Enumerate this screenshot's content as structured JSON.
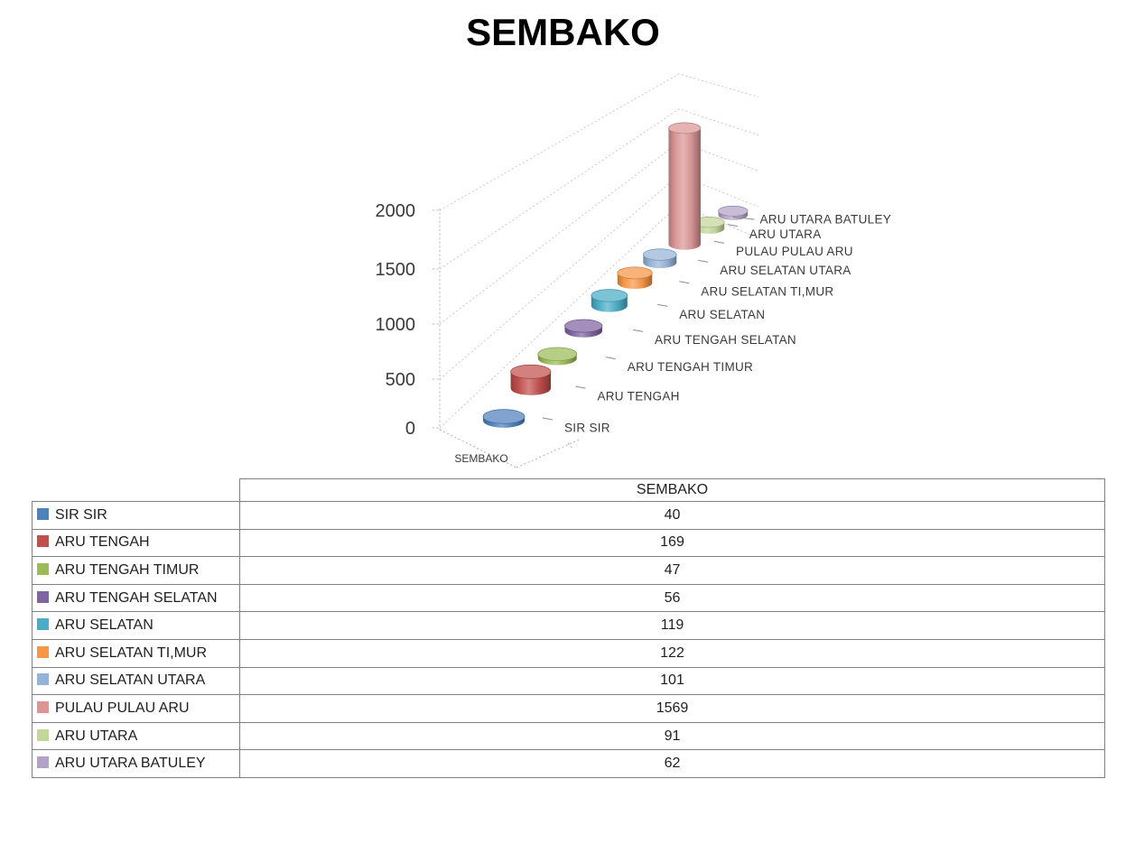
{
  "title": "SEMBAKO",
  "chart_data": {
    "type": "bar",
    "subtype": "3d-cylinder",
    "title": "SEMBAKO",
    "category": "SEMBAKO",
    "xlabel": "SEMBAKO",
    "ylabel": "",
    "ylim": [
      0,
      2000
    ],
    "value_axis_ticks": [
      0,
      500,
      1000,
      1500,
      2000
    ],
    "grid": "dashed",
    "legend_position": "table-left",
    "series": [
      {
        "name": "SIR SIR",
        "value": 40,
        "color": "#4F81BD"
      },
      {
        "name": "ARU TENGAH",
        "value": 169,
        "color": "#C0504D"
      },
      {
        "name": "ARU TENGAH TIMUR",
        "value": 47,
        "color": "#9BBB59"
      },
      {
        "name": "ARU TENGAH SELATAN",
        "value": 56,
        "color": "#8064A2"
      },
      {
        "name": "ARU SELATAN",
        "value": 119,
        "color": "#4BACC6"
      },
      {
        "name": "ARU SELATAN TI,MUR",
        "value": 122,
        "color": "#F79646"
      },
      {
        "name": "ARU SELATAN UTARA",
        "value": 101,
        "color": "#95B3D7"
      },
      {
        "name": "PULAU PULAU ARU",
        "value": 1569,
        "color": "#D99694"
      },
      {
        "name": "ARU UTARA",
        "value": 91,
        "color": "#C3D69B"
      },
      {
        "name": "ARU UTARA BATULEY",
        "value": 62,
        "color": "#B3A2C7"
      }
    ]
  },
  "table": {
    "header": "SEMBAKO",
    "rows": [
      {
        "label": "SIR SIR",
        "value": "40",
        "swatch_color": "#4F81BD"
      },
      {
        "label": "ARU TENGAH",
        "value": "169",
        "swatch_color": "#C0504D"
      },
      {
        "label": "ARU TENGAH TIMUR",
        "value": "47",
        "swatch_color": "#9BBB59"
      },
      {
        "label": "ARU TENGAH SELATAN",
        "value": "56",
        "swatch_color": "#8064A2"
      },
      {
        "label": "ARU SELATAN",
        "value": "119",
        "swatch_color": "#4BACC6"
      },
      {
        "label": "ARU SELATAN TI,MUR",
        "value": "122",
        "swatch_color": "#F79646"
      },
      {
        "label": "ARU SELATAN UTARA",
        "value": "101",
        "swatch_color": "#95B3D7"
      },
      {
        "label": "PULAU PULAU ARU",
        "value": "1569",
        "swatch_color": "#D99694"
      },
      {
        "label": "ARU UTARA",
        "value": "91",
        "swatch_color": "#C3D69B"
      },
      {
        "label": "ARU UTARA BATULEY",
        "value": "62",
        "swatch_color": "#B3A2C7"
      }
    ]
  }
}
